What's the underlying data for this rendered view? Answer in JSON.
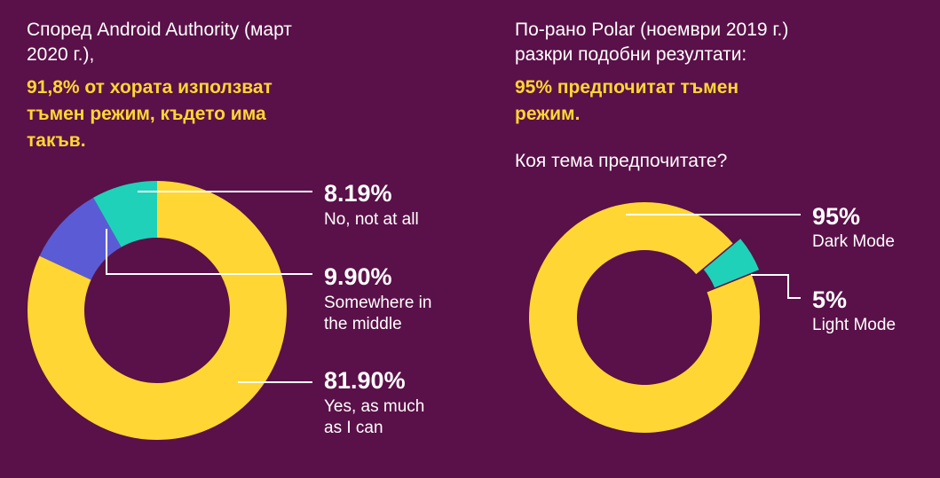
{
  "left": {
    "intro": [
      "Според Android Authority (март",
      "2020 г.),"
    ],
    "highlight": [
      "91,8% от хората използват",
      "тъмен режим, където има",
      "такъв."
    ]
  },
  "right": {
    "intro": [
      "По-рано Polar (ноември 2019 г.)",
      "разкри подобни резултати:"
    ],
    "highlight": [
      "95% предпочитат тъмен",
      "режим."
    ],
    "question": "Коя тема предпочитате?"
  },
  "chart_data": [
    {
      "type": "pie",
      "slices": [
        {
          "label_value": "8.19%",
          "label": [
            "No, not at all"
          ],
          "value": 8.19,
          "color": "#1fd1b9"
        },
        {
          "label_value": "9.90%",
          "label": [
            "Somewhere in",
            "the middle"
          ],
          "value": 9.9,
          "color": "#5b5bd6"
        },
        {
          "label_value": "81.90%",
          "label": [
            "Yes, as much",
            "as I can"
          ],
          "value": 81.9,
          "color": "#ffd633"
        }
      ]
    },
    {
      "type": "pie",
      "slices": [
        {
          "label_value": "95%",
          "label": [
            "Dark Mode"
          ],
          "value": 95,
          "color": "#ffd633"
        },
        {
          "label_value": "5%",
          "label": [
            "Light Mode"
          ],
          "value": 5,
          "color": "#1fd1b9"
        }
      ]
    }
  ]
}
